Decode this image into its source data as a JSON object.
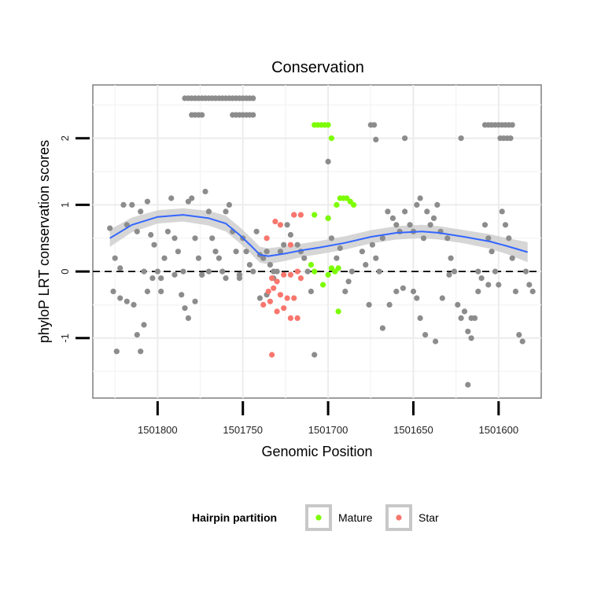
{
  "chart_data": {
    "type": "scatter",
    "title": "Conservation",
    "xlabel": "Genomic Position",
    "ylabel": "phyloP LRT conservation scores",
    "x_reversed": true,
    "xlim": [
      1501838,
      1501575
    ],
    "ylim": [
      -1.9,
      2.8
    ],
    "x_ticks": [
      1501800,
      1501750,
      1501700,
      1501650,
      1501600
    ],
    "x_tick_labels": [
      "1501800",
      "1501750",
      "1501700",
      "1501650",
      "1501600"
    ],
    "y_ticks": [
      -1,
      0,
      1,
      2
    ],
    "y_tick_labels": [
      "-1",
      "0",
      "1",
      "2"
    ],
    "grid": true,
    "reference_line": {
      "y": 0,
      "style": "dashed"
    },
    "legend": {
      "title": "Hairpin partition",
      "position": "bottom",
      "entries": [
        {
          "name": "Mature",
          "color": "#7CFC00"
        },
        {
          "name": "Star",
          "color": "#F8766D"
        }
      ]
    },
    "colors": {
      "other": "#8C8C8C",
      "Mature": "#7CFC00",
      "Star": "#F8766D",
      "smooth": "#3366FF",
      "ribbon": "#C8C8C8"
    },
    "series": [
      {
        "group": "other",
        "points": [
          [
            1501784,
            2.6
          ],
          [
            1501782,
            2.6
          ],
          [
            1501780,
            2.6
          ],
          [
            1501778,
            2.6
          ],
          [
            1501776,
            2.6
          ],
          [
            1501774,
            2.6
          ],
          [
            1501772,
            2.6
          ],
          [
            1501770,
            2.6
          ],
          [
            1501768,
            2.6
          ],
          [
            1501766,
            2.6
          ],
          [
            1501764,
            2.6
          ],
          [
            1501762,
            2.6
          ],
          [
            1501760,
            2.6
          ],
          [
            1501758,
            2.6
          ],
          [
            1501756,
            2.6
          ],
          [
            1501754,
            2.6
          ],
          [
            1501752,
            2.6
          ],
          [
            1501750,
            2.6
          ],
          [
            1501748,
            2.6
          ],
          [
            1501746,
            2.6
          ],
          [
            1501744,
            2.6
          ],
          [
            1501780,
            2.35
          ],
          [
            1501778,
            2.35
          ],
          [
            1501776,
            2.35
          ],
          [
            1501774,
            2.35
          ],
          [
            1501756,
            2.35
          ],
          [
            1501754,
            2.35
          ],
          [
            1501752,
            2.35
          ],
          [
            1501750,
            2.35
          ],
          [
            1501748,
            2.35
          ],
          [
            1501746,
            2.35
          ],
          [
            1501744,
            2.35
          ],
          [
            1501675,
            2.2
          ],
          [
            1501673,
            2.2
          ],
          [
            1501655,
            2.0
          ],
          [
            1501622,
            2.0
          ],
          [
            1501608,
            2.2
          ],
          [
            1501606,
            2.2
          ],
          [
            1501604,
            2.2
          ],
          [
            1501602,
            2.2
          ],
          [
            1501600,
            2.2
          ],
          [
            1501598,
            2.2
          ],
          [
            1501596,
            2.2
          ],
          [
            1501594,
            2.2
          ],
          [
            1501592,
            2.2
          ],
          [
            1501599,
            2.0
          ],
          [
            1501597,
            2.0
          ],
          [
            1501595,
            2.0
          ],
          [
            1501593,
            2.0
          ],
          [
            1501672,
            1.98
          ],
          [
            1501700,
            1.65
          ],
          [
            1501828,
            0.65
          ],
          [
            1501825,
            0.2
          ],
          [
            1501822,
            0.05
          ],
          [
            1501820,
            1.0
          ],
          [
            1501818,
            0.7
          ],
          [
            1501815,
            1.0
          ],
          [
            1501812,
            0.6
          ],
          [
            1501810,
            0.9
          ],
          [
            1501808,
            0.0
          ],
          [
            1501806,
            1.05
          ],
          [
            1501804,
            0.55
          ],
          [
            1501802,
            0.4
          ],
          [
            1501800,
            0.0
          ],
          [
            1501798,
            -0.1
          ],
          [
            1501796,
            0.2
          ],
          [
            1501794,
            0.6
          ],
          [
            1501792,
            1.1
          ],
          [
            1501790,
            0.5
          ],
          [
            1501788,
            0.3
          ],
          [
            1501785,
            0.0
          ],
          [
            1501782,
            1.05
          ],
          [
            1501780,
            1.1
          ],
          [
            1501778,
            0.5
          ],
          [
            1501776,
            0.2
          ],
          [
            1501774,
            -0.05
          ],
          [
            1501772,
            1.2
          ],
          [
            1501770,
            0.9
          ],
          [
            1501768,
            0.5
          ],
          [
            1501766,
            0.3
          ],
          [
            1501764,
            0.2
          ],
          [
            1501762,
            0.0
          ],
          [
            1501760,
            0.9
          ],
          [
            1501758,
            1.0
          ],
          [
            1501756,
            0.6
          ],
          [
            1501754,
            0.3
          ],
          [
            1501752,
            -0.05
          ],
          [
            1501750,
            0.5
          ],
          [
            1501748,
            0.3
          ],
          [
            1501746,
            0.1
          ],
          [
            1501744,
            0.0
          ],
          [
            1501742,
            0.6
          ],
          [
            1501740,
            0.25
          ],
          [
            1501738,
            0.2
          ],
          [
            1501736,
            0.3
          ],
          [
            1501734,
            0.1
          ],
          [
            1501732,
            0.0
          ],
          [
            1501730,
            0.0
          ],
          [
            1501728,
            0.3
          ],
          [
            1501726,
            0.4
          ],
          [
            1501724,
            0.7
          ],
          [
            1501722,
            0.55
          ],
          [
            1501720,
            0.85
          ],
          [
            1501718,
            0.4
          ],
          [
            1501716,
            0.3
          ],
          [
            1501714,
            0.2
          ],
          [
            1501712,
            0.0
          ],
          [
            1501826,
            -0.3
          ],
          [
            1501824,
            -1.2
          ],
          [
            1501822,
            -0.4
          ],
          [
            1501818,
            -0.45
          ],
          [
            1501814,
            -0.5
          ],
          [
            1501812,
            -0.95
          ],
          [
            1501810,
            -1.2
          ],
          [
            1501808,
            -0.8
          ],
          [
            1501806,
            -0.3
          ],
          [
            1501803,
            -0.1
          ],
          [
            1501798,
            -0.3
          ],
          [
            1501790,
            -0.05
          ],
          [
            1501786,
            -0.35
          ],
          [
            1501784,
            -0.55
          ],
          [
            1501782,
            -0.7
          ],
          [
            1501778,
            -0.45
          ],
          [
            1501774,
            -0.05
          ],
          [
            1501770,
            0.0
          ],
          [
            1501760,
            -0.1
          ],
          [
            1501752,
            -0.1
          ],
          [
            1501740,
            -0.4
          ],
          [
            1501736,
            -0.35
          ],
          [
            1501732,
            -0.1
          ],
          [
            1501710,
            -0.3
          ],
          [
            1501708,
            -1.25
          ],
          [
            1501700,
            0.8
          ],
          [
            1501698,
            0.5
          ],
          [
            1501695,
            0.2
          ],
          [
            1501693,
            0.35
          ],
          [
            1501690,
            -0.3
          ],
          [
            1501688,
            -0.15
          ],
          [
            1501686,
            0.0
          ],
          [
            1501680,
            0.3
          ],
          [
            1501678,
            0.1
          ],
          [
            1501676,
            -0.5
          ],
          [
            1501674,
            0.4
          ],
          [
            1501672,
            0.2
          ],
          [
            1501670,
            0.0
          ],
          [
            1501668,
            0.5
          ],
          [
            1501665,
            0.9
          ],
          [
            1501662,
            0.8
          ],
          [
            1501660,
            0.7
          ],
          [
            1501658,
            0.6
          ],
          [
            1501655,
            0.9
          ],
          [
            1501652,
            0.7
          ],
          [
            1501650,
            0.6
          ],
          [
            1501648,
            1.0
          ],
          [
            1501646,
            1.1
          ],
          [
            1501644,
            0.5
          ],
          [
            1501642,
            0.9
          ],
          [
            1501640,
            0.7
          ],
          [
            1501638,
            0.8
          ],
          [
            1501636,
            1.0
          ],
          [
            1501634,
            0.6
          ],
          [
            1501630,
            0.5
          ],
          [
            1501628,
            0.2
          ],
          [
            1501626,
            0.0
          ],
          [
            1501624,
            -0.5
          ],
          [
            1501622,
            -0.7
          ],
          [
            1501620,
            -0.6
          ],
          [
            1501618,
            -0.9
          ],
          [
            1501616,
            -1.0
          ],
          [
            1501614,
            -0.7
          ],
          [
            1501612,
            -0.3
          ],
          [
            1501610,
            -0.1
          ],
          [
            1501608,
            0.7
          ],
          [
            1501606,
            0.5
          ],
          [
            1501604,
            0.3
          ],
          [
            1501602,
            0.0
          ],
          [
            1501600,
            -0.2
          ],
          [
            1501598,
            0.9
          ],
          [
            1501596,
            0.7
          ],
          [
            1501594,
            0.5
          ],
          [
            1501592,
            0.2
          ],
          [
            1501590,
            -0.3
          ],
          [
            1501588,
            -0.95
          ],
          [
            1501586,
            -1.05
          ],
          [
            1501584,
            0.0
          ],
          [
            1501582,
            -0.2
          ],
          [
            1501580,
            -0.3
          ],
          [
            1501668,
            -0.85
          ],
          [
            1501664,
            -0.5
          ],
          [
            1501660,
            -0.3
          ],
          [
            1501656,
            -0.25
          ],
          [
            1501650,
            -0.3
          ],
          [
            1501648,
            -0.4
          ],
          [
            1501646,
            -0.7
          ],
          [
            1501643,
            -0.95
          ],
          [
            1501637,
            -1.05
          ],
          [
            1501633,
            -0.4
          ],
          [
            1501629,
            -0.05
          ],
          [
            1501618,
            -1.7
          ],
          [
            1501616,
            -0.7
          ],
          [
            1501612,
            0.0
          ],
          [
            1501606,
            -0.2
          ]
        ]
      },
      {
        "group": "Mature",
        "points": [
          [
            1501708,
            2.2
          ],
          [
            1501706,
            2.2
          ],
          [
            1501704,
            2.2
          ],
          [
            1501702,
            2.2
          ],
          [
            1501700,
            2.2
          ],
          [
            1501698,
            2.0
          ],
          [
            1501693,
            1.1
          ],
          [
            1501691,
            1.1
          ],
          [
            1501689,
            1.1
          ],
          [
            1501687,
            1.05
          ],
          [
            1501685,
            1.0
          ],
          [
            1501695,
            1.0
          ],
          [
            1501708,
            0.85
          ],
          [
            1501700,
            0.8
          ],
          [
            1501710,
            0.1
          ],
          [
            1501708,
            0.0
          ],
          [
            1501703,
            -0.2
          ],
          [
            1501700,
            -0.05
          ],
          [
            1501696,
            0.0
          ],
          [
            1501694,
            0.05
          ],
          [
            1501698,
            0.05
          ],
          [
            1501694,
            -0.6
          ]
        ]
      },
      {
        "group": "Star",
        "points": [
          [
            1501736,
            0.5
          ],
          [
            1501731,
            0.75
          ],
          [
            1501728,
            0.7
          ],
          [
            1501720,
            0.85
          ],
          [
            1501716,
            0.85
          ],
          [
            1501722,
            0.4
          ],
          [
            1501733,
            -0.1
          ],
          [
            1501730,
            -0.15
          ],
          [
            1501726,
            -0.05
          ],
          [
            1501722,
            -0.05
          ],
          [
            1501718,
            0.0
          ],
          [
            1501735,
            -0.3
          ],
          [
            1501732,
            -0.25
          ],
          [
            1501728,
            -0.35
          ],
          [
            1501724,
            -0.4
          ],
          [
            1501720,
            -0.4
          ],
          [
            1501716,
            -0.1
          ],
          [
            1501738,
            -0.5
          ],
          [
            1501734,
            -0.45
          ],
          [
            1501730,
            -0.6
          ],
          [
            1501726,
            -0.55
          ],
          [
            1501722,
            -0.7
          ],
          [
            1501718,
            -0.7
          ],
          [
            1501733,
            -1.25
          ]
        ]
      }
    ],
    "smooth": {
      "x": [
        1501828,
        1501815,
        1501800,
        1501785,
        1501770,
        1501760,
        1501752,
        1501745,
        1501740,
        1501735,
        1501725,
        1501715,
        1501705,
        1501690,
        1501675,
        1501660,
        1501645,
        1501635,
        1501620,
        1501605,
        1501595,
        1501583
      ],
      "y": [
        0.5,
        0.7,
        0.82,
        0.85,
        0.8,
        0.72,
        0.55,
        0.38,
        0.25,
        0.23,
        0.27,
        0.32,
        0.36,
        0.43,
        0.52,
        0.58,
        0.6,
        0.58,
        0.52,
        0.45,
        0.38,
        0.29
      ],
      "ci": [
        0.13,
        0.11,
        0.1,
        0.1,
        0.11,
        0.12,
        0.12,
        0.12,
        0.12,
        0.12,
        0.11,
        0.1,
        0.1,
        0.1,
        0.1,
        0.1,
        0.1,
        0.1,
        0.1,
        0.11,
        0.12,
        0.15
      ]
    }
  }
}
